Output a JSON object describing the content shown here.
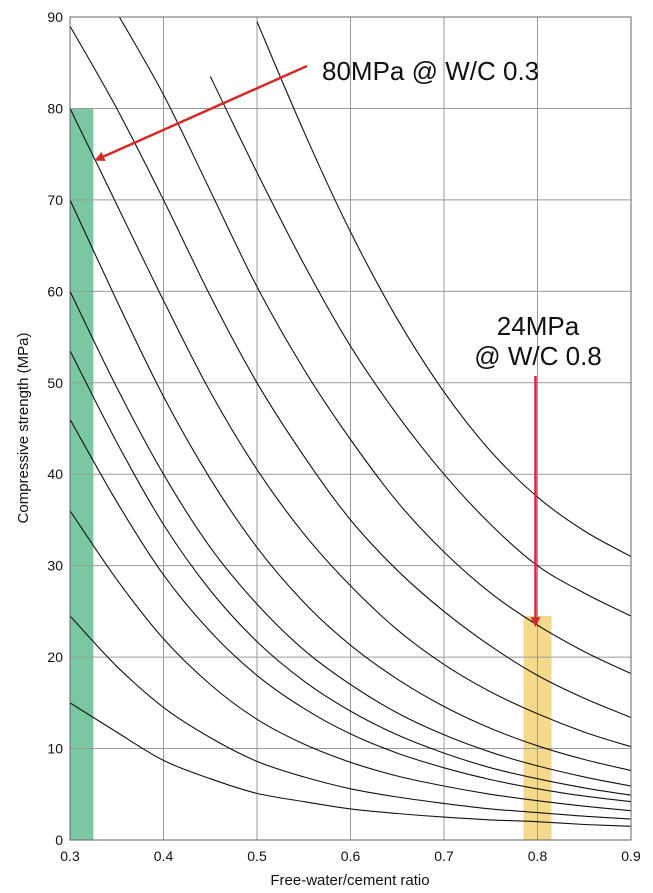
{
  "chart_data": {
    "type": "line",
    "title": "",
    "xlabel": "Free-water/cement ratio",
    "ylabel": "Compressive strength (MPa)",
    "xlim": [
      0.3,
      0.9
    ],
    "ylim": [
      0,
      90
    ],
    "x_ticks": [
      "0.3",
      "0.4",
      "0.5",
      "0.6",
      "0.7",
      "0.8",
      "0.9"
    ],
    "y_ticks": [
      "0",
      "10",
      "20",
      "30",
      "40",
      "50",
      "60",
      "70",
      "80",
      "90"
    ],
    "grid": true,
    "x": [
      0.3,
      0.35,
      0.4,
      0.45,
      0.5,
      0.55,
      0.6,
      0.65,
      0.7,
      0.75,
      0.8,
      0.85,
      0.9
    ],
    "series": [
      {
        "values": [
          15.0,
          11.8,
          8.7,
          6.7,
          5.1,
          4.2,
          3.4,
          2.9,
          2.5,
          2.2,
          2.0,
          1.7,
          1.5
        ]
      },
      {
        "values": [
          24.5,
          19.0,
          14.5,
          11.2,
          8.6,
          6.9,
          5.6,
          4.7,
          4.0,
          3.4,
          3.0,
          2.6,
          2.3
        ]
      },
      {
        "values": [
          36.0,
          28.5,
          22.0,
          17.0,
          13.2,
          10.5,
          8.5,
          7.0,
          5.9,
          5.0,
          4.3,
          3.7,
          3.2
        ]
      },
      {
        "values": [
          46.0,
          37.0,
          29.0,
          22.8,
          18.0,
          14.4,
          11.6,
          9.5,
          7.9,
          6.6,
          5.6,
          4.8,
          4.2
        ]
      },
      {
        "values": [
          53.5,
          43.5,
          34.5,
          27.3,
          21.7,
          17.4,
          14.1,
          11.5,
          9.5,
          7.9,
          6.7,
          5.7,
          4.9
        ]
      },
      {
        "values": [
          60.0,
          49.5,
          40.0,
          32.0,
          25.8,
          20.8,
          17.0,
          13.9,
          11.5,
          9.6,
          8.1,
          6.9,
          5.9
        ]
      },
      {
        "values": [
          70.0,
          59.0,
          48.5,
          39.5,
          32.0,
          26.0,
          21.3,
          17.6,
          14.6,
          12.2,
          10.3,
          8.8,
          7.6
        ]
      },
      {
        "values": [
          80.0,
          69.5,
          59.0,
          49.0,
          40.5,
          33.5,
          27.8,
          23.0,
          19.2,
          16.2,
          13.8,
          11.8,
          10.2
        ]
      },
      {
        "values": [
          89.0,
          80.0,
          70.0,
          59.5,
          50.0,
          42.0,
          35.0,
          29.5,
          25.0,
          21.2,
          18.0,
          15.5,
          13.4
        ]
      },
      {
        "values": [
          null,
          90.5,
          81.5,
          71.0,
          60.5,
          51.5,
          43.8,
          37.0,
          31.5,
          27.0,
          23.5,
          20.6,
          18.2
        ]
      },
      {
        "values": [
          null,
          null,
          null,
          83.5,
          73.0,
          63.0,
          54.0,
          46.5,
          40.0,
          34.5,
          30.0,
          27.0,
          24.5
        ]
      },
      {
        "values": [
          null,
          null,
          null,
          null,
          89.5,
          77.5,
          66.5,
          57.0,
          49.0,
          42.5,
          37.5,
          33.8,
          31.0
        ]
      }
    ],
    "highlights": [
      {
        "x_range": [
          0.3,
          0.325
        ],
        "y_max": 80,
        "color": "#7ac8a2"
      },
      {
        "x_range": [
          0.785,
          0.815
        ],
        "y_max": 24.5,
        "color": "#f7d98e"
      }
    ],
    "annotations": [
      {
        "lines": [
          "80MPa @ W/C 0.3"
        ],
        "arrow_to": [
          0.325,
          74.5
        ],
        "color": "#d12b2b"
      },
      {
        "lines": [
          "24MPa",
          "@ W/C 0.8"
        ],
        "arrow_to": [
          0.8,
          23.5
        ],
        "color": "#d12b2b"
      }
    ]
  }
}
